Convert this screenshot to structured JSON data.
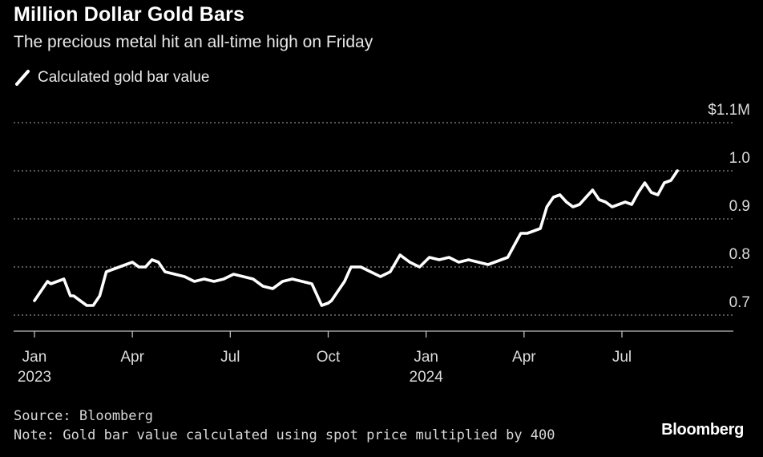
{
  "header": {
    "title": "Million Dollar Gold Bars",
    "subtitle": "The precious metal hit an all-time high on Friday"
  },
  "legend": {
    "label": "Calculated gold bar value",
    "swatch_icon": "slash-line-icon"
  },
  "footer": {
    "source": "Source: Bloomberg",
    "note": "Note: Gold bar value calculated using spot price multiplied by 400",
    "brand": "Bloomberg"
  },
  "chart_data": {
    "type": "line",
    "title": "Million Dollar Gold Bars",
    "subtitle": "The precious metal hit an all-time high on Friday",
    "xlabel": "",
    "ylabel": "",
    "units": "$ millions",
    "ylim": [
      0.67,
      1.1
    ],
    "y_ticks": [
      {
        "value": 0.7,
        "label": "0.7"
      },
      {
        "value": 0.8,
        "label": "0.8"
      },
      {
        "value": 0.9,
        "label": "0.9"
      },
      {
        "value": 1.0,
        "label": "1.0"
      },
      {
        "value": 1.1,
        "label": "$1.1M"
      }
    ],
    "x_ticks": [
      {
        "month": 0,
        "label": "Jan",
        "sublabel": "2023"
      },
      {
        "month": 3,
        "label": "Apr",
        "sublabel": ""
      },
      {
        "month": 6,
        "label": "Jul",
        "sublabel": ""
      },
      {
        "month": 9,
        "label": "Oct",
        "sublabel": ""
      },
      {
        "month": 12,
        "label": "Jan",
        "sublabel": "2024"
      },
      {
        "month": 15,
        "label": "Apr",
        "sublabel": ""
      },
      {
        "month": 18,
        "label": "Jul",
        "sublabel": ""
      }
    ],
    "grid": "horizontal-dotted",
    "color": "#ffffff",
    "series": [
      {
        "name": "Calculated gold bar value",
        "x": [
          0.0,
          0.1,
          0.3,
          0.4,
          0.5,
          0.7,
          0.9,
          1.1,
          1.2,
          1.4,
          1.6,
          1.8,
          2.0,
          2.2,
          2.4,
          2.6,
          2.8,
          3.0,
          3.2,
          3.4,
          3.6,
          3.8,
          4.0,
          4.3,
          4.6,
          4.9,
          5.2,
          5.5,
          5.8,
          6.1,
          6.4,
          6.7,
          7.0,
          7.3,
          7.6,
          7.9,
          8.2,
          8.5,
          8.8,
          9.0,
          9.1,
          9.3,
          9.5,
          9.7,
          10.0,
          10.3,
          10.6,
          10.9,
          11.2,
          11.5,
          11.8,
          12.1,
          12.4,
          12.7,
          13.0,
          13.3,
          13.6,
          13.9,
          14.1,
          14.3,
          14.5,
          14.7,
          14.9,
          15.1,
          15.3,
          15.5,
          15.7,
          15.9,
          16.1,
          16.3,
          16.5,
          16.7,
          16.9,
          17.1,
          17.3,
          17.5,
          17.7,
          17.9,
          18.1,
          18.3,
          18.5,
          18.7,
          18.9,
          19.1,
          19.3,
          19.5,
          19.7
        ],
        "values": [
          0.73,
          0.74,
          0.76,
          0.77,
          0.765,
          0.77,
          0.775,
          0.74,
          0.74,
          0.73,
          0.72,
          0.72,
          0.74,
          0.79,
          0.795,
          0.8,
          0.805,
          0.81,
          0.8,
          0.8,
          0.815,
          0.81,
          0.79,
          0.785,
          0.78,
          0.77,
          0.775,
          0.77,
          0.775,
          0.785,
          0.78,
          0.775,
          0.76,
          0.755,
          0.77,
          0.775,
          0.77,
          0.765,
          0.72,
          0.725,
          0.73,
          0.75,
          0.77,
          0.8,
          0.8,
          0.79,
          0.78,
          0.79,
          0.825,
          0.81,
          0.8,
          0.82,
          0.815,
          0.82,
          0.81,
          0.815,
          0.81,
          0.805,
          0.81,
          0.815,
          0.82,
          0.845,
          0.87,
          0.87,
          0.875,
          0.88,
          0.925,
          0.945,
          0.95,
          0.935,
          0.925,
          0.93,
          0.945,
          0.96,
          0.94,
          0.935,
          0.925,
          0.93,
          0.935,
          0.93,
          0.955,
          0.975,
          0.955,
          0.95,
          0.975,
          0.98,
          1.0
        ]
      }
    ]
  }
}
